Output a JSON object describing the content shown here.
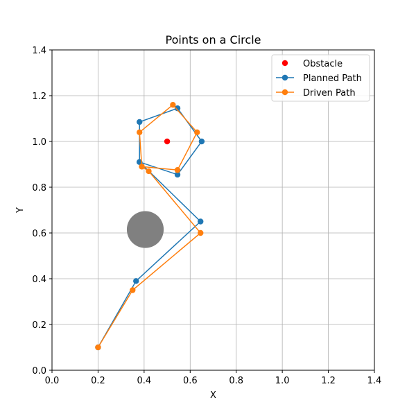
{
  "chart_data": {
    "type": "line",
    "title": "Points on a Circle",
    "xlabel": "X",
    "ylabel": "Y",
    "xlim": [
      0.0,
      1.4
    ],
    "ylim": [
      0.0,
      1.4
    ],
    "xticks": [
      "0.0",
      "0.2",
      "0.4",
      "0.6",
      "0.8",
      "1.0",
      "1.2",
      "1.4"
    ],
    "yticks": [
      "0.0",
      "0.2",
      "0.4",
      "0.6",
      "0.8",
      "1.0",
      "1.2",
      "1.4"
    ],
    "grid": true,
    "legend_position": "top-right",
    "series": [
      {
        "name": "Obstacle",
        "kind": "marker",
        "color": "#ff0000",
        "points": [
          [
            0.5,
            1.0
          ]
        ]
      },
      {
        "name": "Planned Path",
        "kind": "line",
        "color": "#1f77b4",
        "points": [
          [
            0.2,
            0.1
          ],
          [
            0.365,
            0.39
          ],
          [
            0.645,
            0.65
          ],
          [
            0.38,
            0.91
          ],
          [
            0.38,
            1.085
          ],
          [
            0.545,
            1.145
          ],
          [
            0.65,
            1.0
          ],
          [
            0.545,
            0.855
          ],
          [
            0.38,
            0.91
          ]
        ]
      },
      {
        "name": "Driven Path",
        "kind": "line",
        "color": "#ff7f0e",
        "points": [
          [
            0.2,
            0.1
          ],
          [
            0.35,
            0.35
          ],
          [
            0.645,
            0.6
          ],
          [
            0.42,
            0.87
          ],
          [
            0.39,
            0.89
          ],
          [
            0.545,
            0.875
          ],
          [
            0.63,
            1.04
          ],
          [
            0.525,
            1.16
          ],
          [
            0.38,
            1.04
          ],
          [
            0.39,
            0.89
          ]
        ]
      }
    ],
    "circle_marker": {
      "color": "#808080",
      "center": [
        0.405,
        0.615
      ],
      "radius": 0.08
    }
  }
}
